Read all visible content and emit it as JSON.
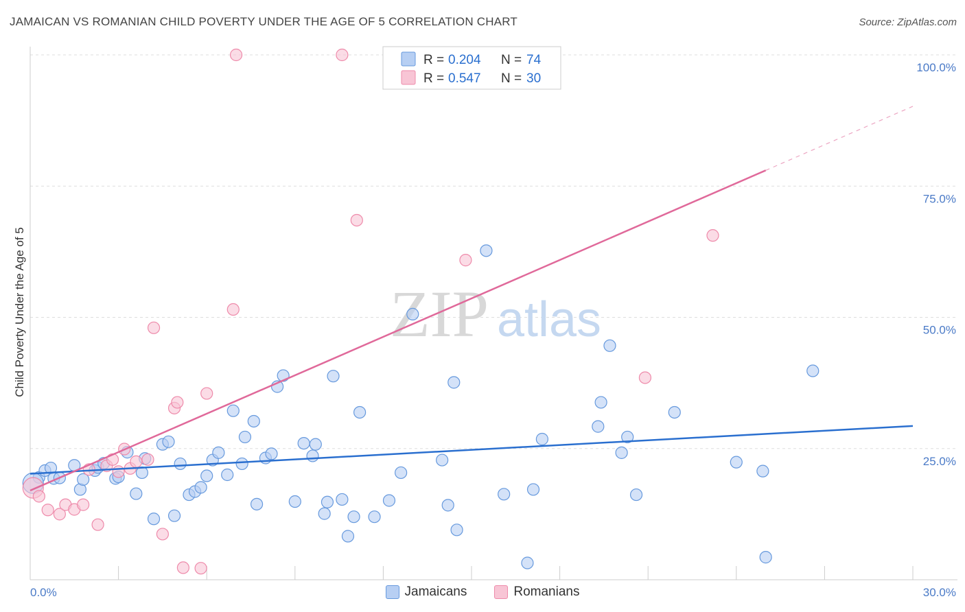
{
  "title": "JAMAICAN VS ROMANIAN CHILD POVERTY UNDER THE AGE OF 5 CORRELATION CHART",
  "source": "Source: ZipAtlas.com",
  "watermark": {
    "zip": "ZIP",
    "atlas": "atlas"
  },
  "colors": {
    "blue": "#6699dd",
    "blueFill": "#b7cff3",
    "blueLine": "#2a6fcf",
    "pink": "#ee8aaa",
    "pinkFill": "#f8c5d5",
    "pinkLine": "#e0699a",
    "tick": "#4a7ac7"
  },
  "chart_data": {
    "type": "scatter",
    "ylabel": "Child Poverty Under the Age of 5",
    "xlim": [
      0,
      30
    ],
    "ylim": [
      0,
      100
    ],
    "x_tick_labels": [
      "0.0%",
      "30.0%"
    ],
    "y_ticks": [
      25,
      50,
      75,
      100
    ],
    "y_tick_labels": [
      "25.0%",
      "50.0%",
      "75.0%",
      "100.0%"
    ],
    "grid": true,
    "legend": [
      {
        "name": "Jamaicans",
        "r_label": "R =",
        "r_value": "0.204",
        "n_label": "N =",
        "n_value": "74"
      },
      {
        "name": "Romanians",
        "r_label": "R =",
        "r_value": "0.547",
        "n_label": "N =",
        "n_value": "30"
      }
    ],
    "series": [
      {
        "name": "Jamaicans",
        "trend": {
          "x": [
            0,
            30
          ],
          "y": [
            20.2,
            29.3
          ]
        },
        "points": [
          [
            0.3,
            19.5
          ],
          [
            0.5,
            20.8
          ],
          [
            0.7,
            21.3
          ],
          [
            0.8,
            19.3
          ],
          [
            1.0,
            19.4
          ],
          [
            1.5,
            21.8
          ],
          [
            1.7,
            17.2
          ],
          [
            1.8,
            19.1
          ],
          [
            2.2,
            20.8
          ],
          [
            2.3,
            21.4
          ],
          [
            2.5,
            22.2
          ],
          [
            2.9,
            19.3
          ],
          [
            3.0,
            19.6
          ],
          [
            3.3,
            24.3
          ],
          [
            3.6,
            16.4
          ],
          [
            3.8,
            20.4
          ],
          [
            3.9,
            23.1
          ],
          [
            4.2,
            11.6
          ],
          [
            4.5,
            25.8
          ],
          [
            4.7,
            26.3
          ],
          [
            4.9,
            12.2
          ],
          [
            5.1,
            22.1
          ],
          [
            5.4,
            16.2
          ],
          [
            5.6,
            16.8
          ],
          [
            5.8,
            17.6
          ],
          [
            6.0,
            19.8
          ],
          [
            6.2,
            22.8
          ],
          [
            6.4,
            24.2
          ],
          [
            6.7,
            20.0
          ],
          [
            6.9,
            32.2
          ],
          [
            7.2,
            22.1
          ],
          [
            7.3,
            27.2
          ],
          [
            7.6,
            30.2
          ],
          [
            7.7,
            14.4
          ],
          [
            8.0,
            23.2
          ],
          [
            8.2,
            24.0
          ],
          [
            8.4,
            36.8
          ],
          [
            8.6,
            38.9
          ],
          [
            9.0,
            14.9
          ],
          [
            9.3,
            26.0
          ],
          [
            9.6,
            23.6
          ],
          [
            9.7,
            25.8
          ],
          [
            10.0,
            12.6
          ],
          [
            10.1,
            14.8
          ],
          [
            10.3,
            38.8
          ],
          [
            10.6,
            15.3
          ],
          [
            10.8,
            8.3
          ],
          [
            11.0,
            12.0
          ],
          [
            11.2,
            31.9
          ],
          [
            11.7,
            12.0
          ],
          [
            12.2,
            15.1
          ],
          [
            12.6,
            20.4
          ],
          [
            13.0,
            50.6
          ],
          [
            14.0,
            22.8
          ],
          [
            14.2,
            14.2
          ],
          [
            14.4,
            37.6
          ],
          [
            14.5,
            9.5
          ],
          [
            15.5,
            62.7
          ],
          [
            16.1,
            16.3
          ],
          [
            16.9,
            3.2
          ],
          [
            17.1,
            17.2
          ],
          [
            17.4,
            26.8
          ],
          [
            19.3,
            29.2
          ],
          [
            19.4,
            33.8
          ],
          [
            19.7,
            44.6
          ],
          [
            20.1,
            24.2
          ],
          [
            20.3,
            27.2
          ],
          [
            20.6,
            16.2
          ],
          [
            21.9,
            31.9
          ],
          [
            24.0,
            22.4
          ],
          [
            25.0,
            4.3
          ],
          [
            24.9,
            20.7
          ],
          [
            26.6,
            39.8
          ],
          [
            0.1,
            18.4
          ]
        ]
      },
      {
        "name": "Romanians",
        "trend": {
          "x": [
            0,
            25
          ],
          "y": [
            17.0,
            78.0
          ],
          "x_dashed_end": 30,
          "y_dashed_end": 90.2
        },
        "points": [
          [
            0.1,
            17.5
          ],
          [
            0.3,
            15.9
          ],
          [
            0.6,
            13.3
          ],
          [
            1.0,
            12.5
          ],
          [
            1.2,
            14.3
          ],
          [
            1.5,
            13.4
          ],
          [
            1.8,
            14.3
          ],
          [
            2.0,
            21.0
          ],
          [
            2.3,
            10.5
          ],
          [
            2.6,
            21.7
          ],
          [
            2.8,
            22.9
          ],
          [
            3.0,
            20.6
          ],
          [
            3.2,
            24.9
          ],
          [
            3.4,
            21.2
          ],
          [
            3.6,
            22.5
          ],
          [
            4.0,
            22.9
          ],
          [
            4.2,
            48.0
          ],
          [
            4.5,
            8.7
          ],
          [
            4.9,
            32.7
          ],
          [
            5.0,
            33.8
          ],
          [
            5.2,
            2.3
          ],
          [
            5.8,
            2.2
          ],
          [
            6.0,
            35.5
          ],
          [
            6.9,
            51.5
          ],
          [
            7.0,
            100.0
          ],
          [
            10.6,
            100.0
          ],
          [
            11.1,
            68.5
          ],
          [
            14.8,
            60.9
          ],
          [
            20.9,
            38.5
          ],
          [
            23.2,
            65.6
          ]
        ]
      }
    ]
  }
}
